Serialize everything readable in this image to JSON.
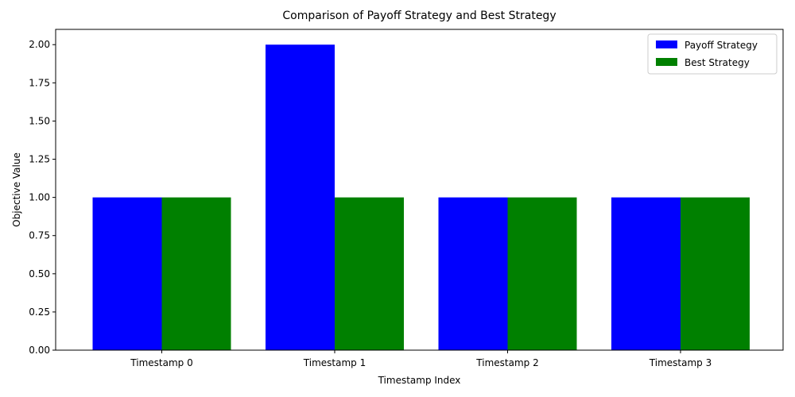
{
  "chart_data": {
    "type": "bar",
    "title": "Comparison of Payoff Strategy and Best Strategy",
    "xlabel": "Timestamp Index",
    "ylabel": "Objective Value",
    "categories": [
      "Timestamp 0",
      "Timestamp 1",
      "Timestamp 2",
      "Timestamp 3"
    ],
    "series": [
      {
        "name": "Payoff Strategy",
        "color": "#0000ff",
        "values": [
          1,
          2,
          1,
          1
        ]
      },
      {
        "name": "Best Strategy",
        "color": "#008000",
        "values": [
          1,
          1,
          1,
          1
        ]
      }
    ],
    "ylim": [
      0,
      2.1
    ],
    "yticks": [
      "0.00",
      "0.25",
      "0.50",
      "0.75",
      "1.00",
      "1.25",
      "1.50",
      "1.75",
      "2.00"
    ],
    "legend_position": "top-right",
    "grid": false
  }
}
